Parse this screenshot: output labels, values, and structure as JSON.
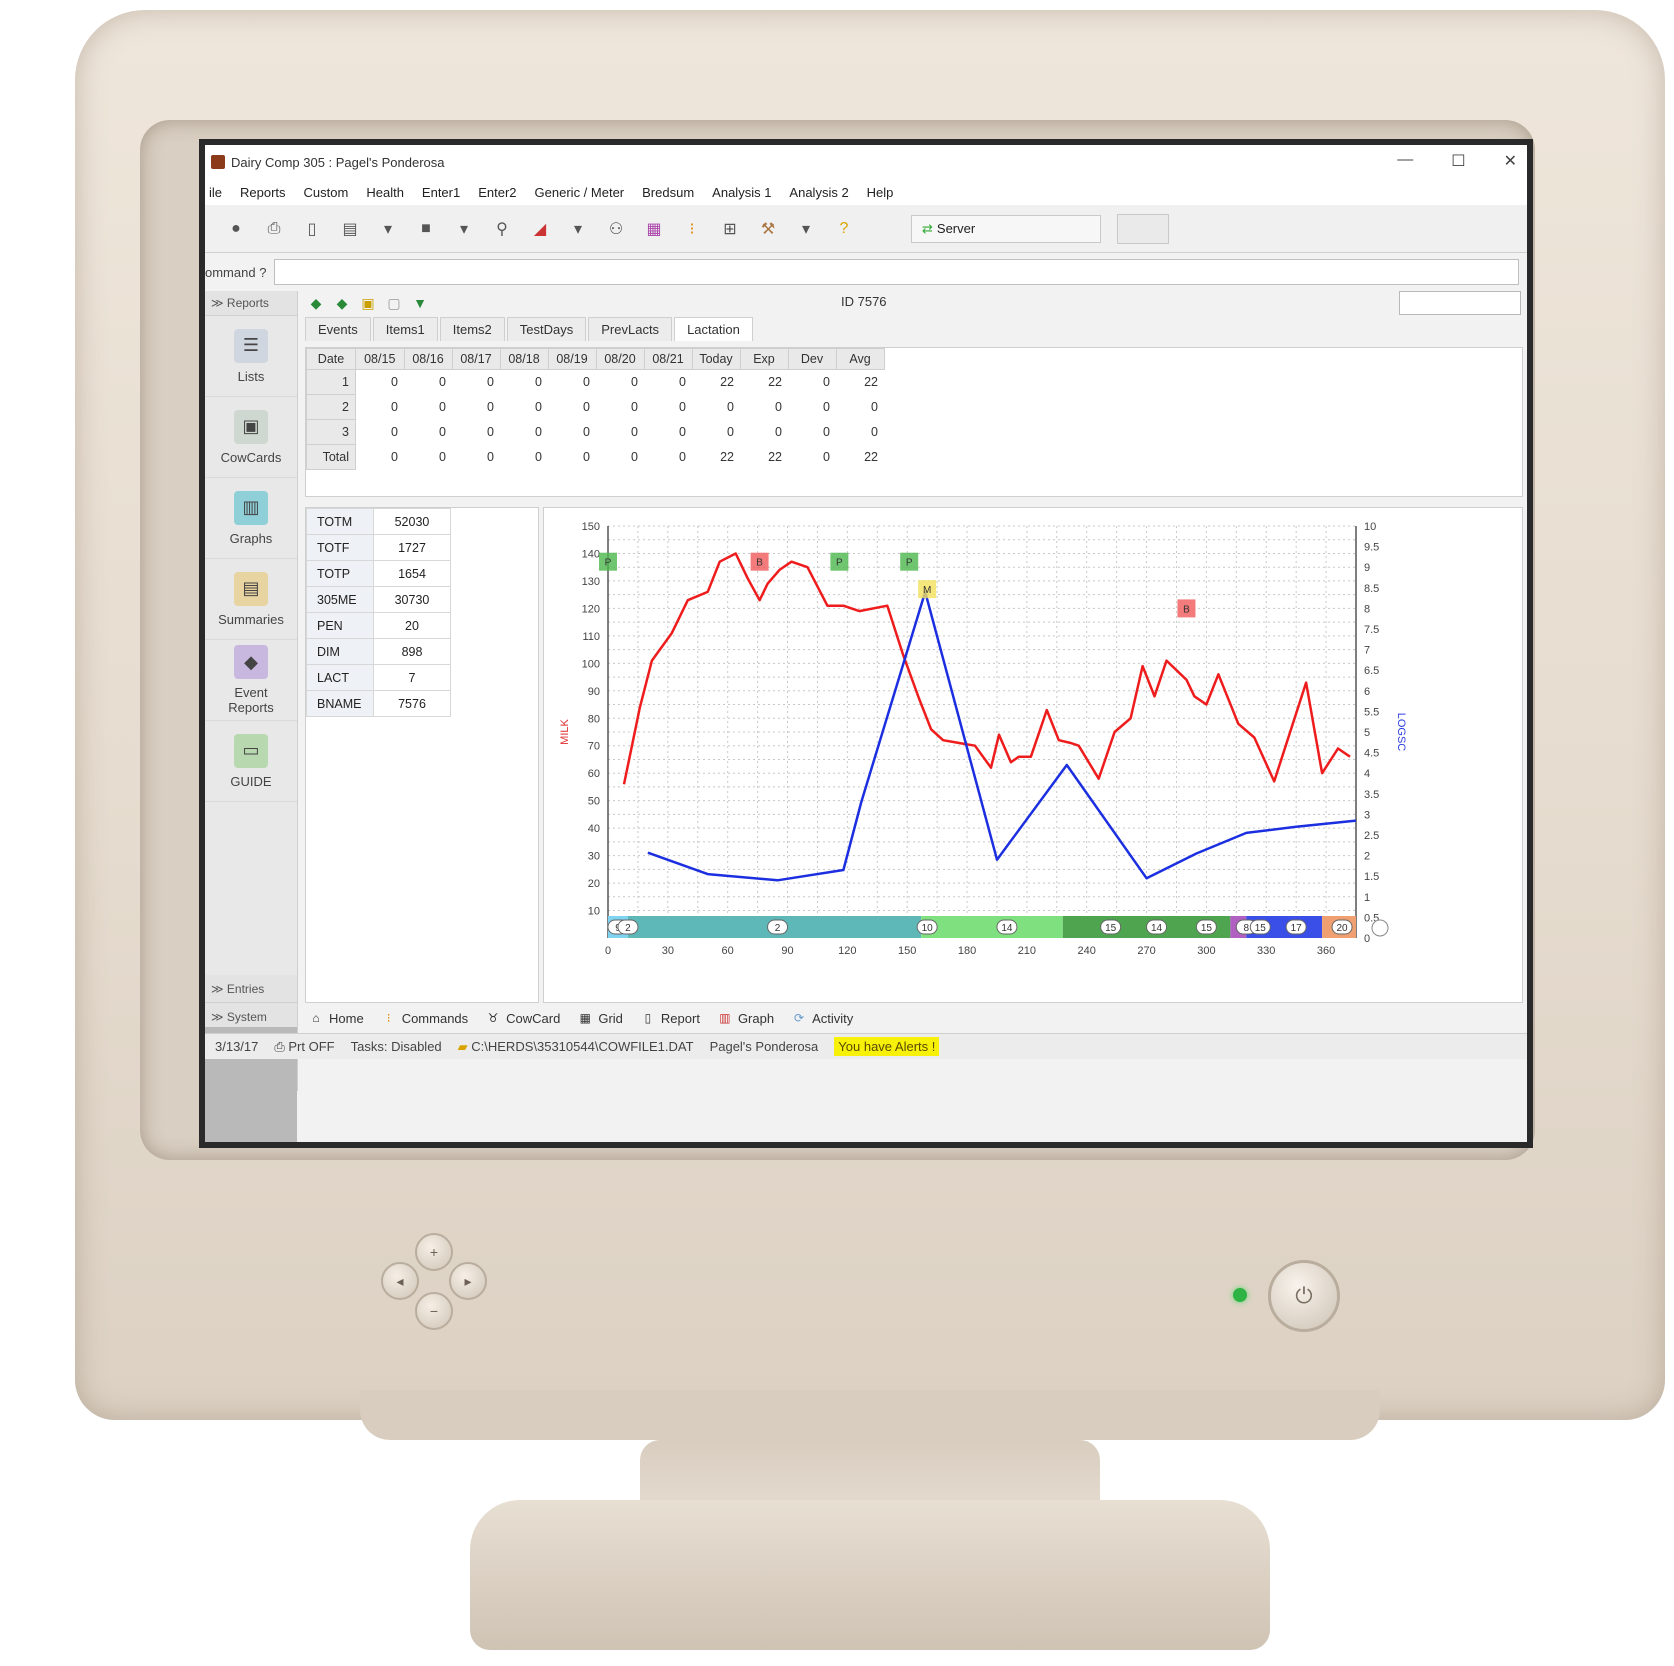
{
  "window": {
    "title": "Dairy Comp 305 : Pagel's Ponderosa"
  },
  "menu": [
    "ile",
    "Reports",
    "Custom",
    "Health",
    "Enter1",
    "Enter2",
    "Generic / Meter",
    "Bredsum",
    "Analysis 1",
    "Analysis 2",
    "Help"
  ],
  "toolbar": {
    "server_label": "Server"
  },
  "command": {
    "label": "ommand ?"
  },
  "sidebar": {
    "reports_head": "Reports",
    "items": [
      {
        "label": "Lists",
        "icon": "lists-icon"
      },
      {
        "label": "CowCards",
        "icon": "cowcards-icon"
      },
      {
        "label": "Graphs",
        "icon": "graphs-icon"
      },
      {
        "label": "Summaries",
        "icon": "summaries-icon"
      },
      {
        "label": "Event Reports",
        "icon": "event-reports-icon"
      },
      {
        "label": "GUIDE",
        "icon": "guide-icon"
      }
    ],
    "entries_head": "Entries",
    "system_head": "System"
  },
  "cow": {
    "id_label": "ID 7576"
  },
  "tabs": [
    "Events",
    "Items1",
    "Items2",
    "TestDays",
    "PrevLacts",
    "Lactation"
  ],
  "lactation_table": {
    "headers": [
      "Date",
      "08/15",
      "08/16",
      "08/17",
      "08/18",
      "08/19",
      "08/20",
      "08/21",
      "Today",
      "Exp",
      "Dev",
      "Avg"
    ],
    "rows": [
      [
        "1",
        "0",
        "0",
        "0",
        "0",
        "0",
        "0",
        "0",
        "22",
        "22",
        "0",
        "22"
      ],
      [
        "2",
        "0",
        "0",
        "0",
        "0",
        "0",
        "0",
        "0",
        "0",
        "0",
        "0",
        "0"
      ],
      [
        "3",
        "0",
        "0",
        "0",
        "0",
        "0",
        "0",
        "0",
        "0",
        "0",
        "0",
        "0"
      ],
      [
        "Total",
        "0",
        "0",
        "0",
        "0",
        "0",
        "0",
        "0",
        "22",
        "22",
        "0",
        "22"
      ]
    ]
  },
  "stats": [
    {
      "k": "TOTM",
      "v": "52030"
    },
    {
      "k": "TOTF",
      "v": "1727"
    },
    {
      "k": "TOTP",
      "v": "1654"
    },
    {
      "k": "305ME",
      "v": "30730"
    },
    {
      "k": "PEN",
      "v": "20"
    },
    {
      "k": "DIM",
      "v": "898"
    },
    {
      "k": "LACT",
      "v": "7"
    },
    {
      "k": "BNAME",
      "v": "7576"
    }
  ],
  "chart_data": {
    "type": "line",
    "ylabel": "MILK",
    "y2label": "LOGSC",
    "xlim": [
      0,
      375
    ],
    "ylim": [
      0,
      150
    ],
    "y2lim": [
      0,
      10
    ],
    "xticks": [
      0,
      30,
      60,
      90,
      120,
      150,
      180,
      210,
      240,
      270,
      300,
      330,
      360
    ],
    "yticks": [
      10,
      20,
      30,
      40,
      50,
      60,
      70,
      80,
      90,
      100,
      110,
      120,
      130,
      140,
      150
    ],
    "y2ticks": [
      "0",
      "0.5",
      "1",
      "1.5",
      "2",
      "2.5",
      "3",
      "3.5",
      "4",
      "4.5",
      "5",
      "5.5",
      "6",
      "6.5",
      "7",
      "7.5",
      "8",
      "8.5",
      "9",
      "9.5",
      "10"
    ],
    "grid": true,
    "series": [
      {
        "name": "MILK",
        "color": "#ee1c1c",
        "axis": "left",
        "x": [
          8,
          16,
          22,
          32,
          40,
          50,
          56,
          64,
          70,
          76,
          80,
          86,
          92,
          100,
          110,
          118,
          126,
          140,
          148,
          156,
          162,
          168,
          176,
          184,
          192,
          196,
          202,
          206,
          212,
          220,
          226,
          232,
          236,
          246,
          254,
          262,
          268,
          274,
          280,
          290,
          294,
          300,
          306,
          316,
          324,
          334,
          350,
          358,
          366,
          372
        ],
        "y": [
          56,
          84,
          101,
          111,
          123,
          126,
          137,
          140,
          131,
          123,
          129,
          134,
          137,
          135,
          121,
          121,
          119,
          121,
          103,
          87,
          76,
          72,
          71,
          70,
          62,
          74,
          64,
          66,
          66,
          83,
          72,
          71,
          70,
          58,
          75,
          80,
          99,
          88,
          101,
          94,
          88,
          85,
          96,
          78,
          73,
          57,
          93,
          60,
          69,
          66
        ]
      },
      {
        "name": "LOGSC",
        "color": "#1c2fe0",
        "axis": "right",
        "x": [
          20,
          50,
          85,
          118,
          127,
          159,
          195,
          230,
          270,
          295,
          320,
          345,
          375
        ],
        "y": [
          2.07,
          1.55,
          1.4,
          1.65,
          3.3,
          8.4,
          1.9,
          4.2,
          1.45,
          2.05,
          2.55,
          2.7,
          2.85
        ]
      }
    ],
    "event_markers": [
      {
        "label": "P",
        "x": 0,
        "y": 137,
        "color": "#4cb84c"
      },
      {
        "label": "B",
        "x": 76,
        "y": 137,
        "color": "#f05a5a"
      },
      {
        "label": "P",
        "x": 116,
        "y": 137,
        "color": "#4cb84c"
      },
      {
        "label": "P",
        "x": 151,
        "y": 137,
        "color": "#4cb84c"
      },
      {
        "label": "M",
        "x": 160,
        "y": 127,
        "color": "#f2e15a"
      },
      {
        "label": "B",
        "x": 290,
        "y": 120,
        "color": "#f05a5a"
      }
    ],
    "pen_bands": [
      {
        "from": 0,
        "to": 10,
        "color": "#7fd3f0",
        "label": "9"
      },
      {
        "from": 10,
        "to": 157,
        "color": "#5fb8b8",
        "label": "2"
      },
      {
        "from": 157,
        "to": 228,
        "color": "#7fe07f",
        "label": "10"
      },
      {
        "from": 228,
        "to": 312,
        "color": "#4fa44f",
        "label": "14"
      },
      {
        "from": 312,
        "to": 320,
        "color": "#b060c0",
        "label": "8"
      },
      {
        "from": 320,
        "to": 358,
        "color": "#3a4fe8",
        "label": "15"
      },
      {
        "from": 358,
        "to": 375,
        "color": "#f0a070",
        "label": "20"
      }
    ],
    "band_badges": [
      {
        "x": 5,
        "label": "9"
      },
      {
        "x": 10,
        "label": "2"
      },
      {
        "x": 85,
        "label": "2"
      },
      {
        "x": 160,
        "label": "10"
      },
      {
        "x": 200,
        "label": "14"
      },
      {
        "x": 252,
        "label": "15"
      },
      {
        "x": 275,
        "label": "14"
      },
      {
        "x": 300,
        "label": "15"
      },
      {
        "x": 320,
        "label": "8"
      },
      {
        "x": 327,
        "label": "15"
      },
      {
        "x": 345,
        "label": "17"
      },
      {
        "x": 368,
        "label": "20"
      }
    ]
  },
  "bottom_tabs": [
    "Home",
    "Commands",
    "CowCard",
    "Grid",
    "Report",
    "Graph",
    "Activity"
  ],
  "status": {
    "date": "3/13/17",
    "print": "Prt OFF",
    "tasks": "Tasks: Disabled",
    "path": "C:\\HERDS\\35310544\\COWFILE1.DAT",
    "herd": "Pagel's Ponderosa",
    "alerts": "You have Alerts !"
  }
}
